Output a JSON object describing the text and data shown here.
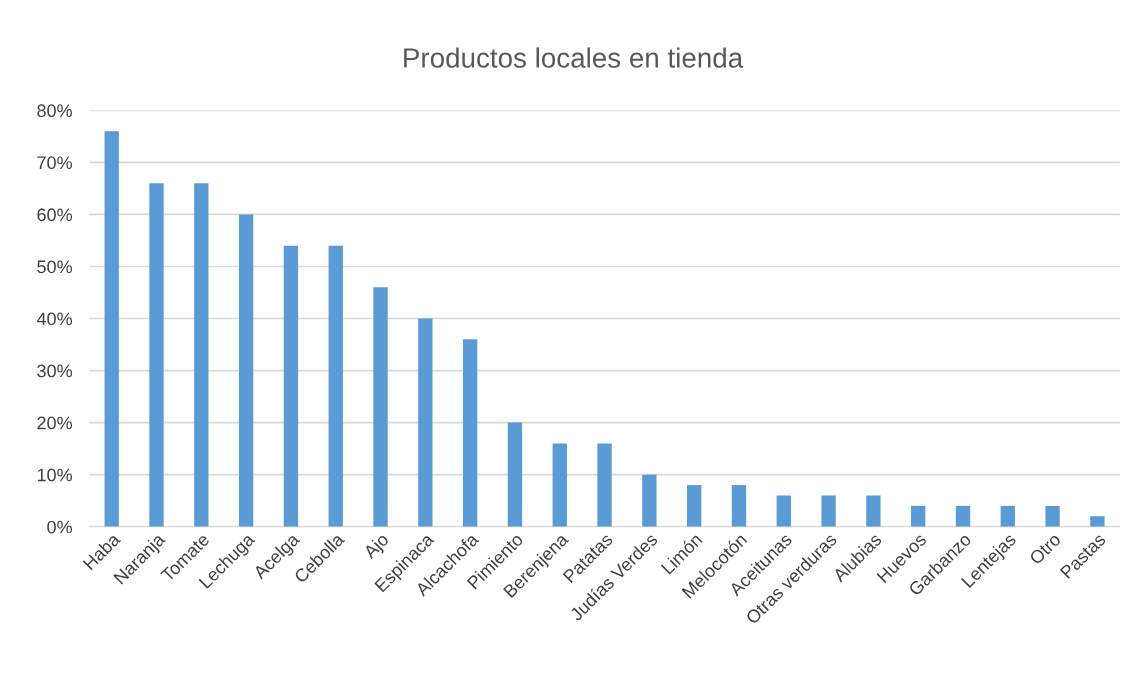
{
  "chart_data": {
    "type": "bar",
    "title": "Productos locales en tienda",
    "categories": [
      "Haba",
      "Naranja",
      "Tomate",
      "Lechuga",
      "Acelga",
      "Cebolla",
      "Ajo",
      "Espinaca",
      "Alcachofa",
      "Pimiento",
      "Berenjena",
      "Patatas",
      "Judías Verdes",
      "Limón",
      "Melocotón",
      "Aceitunas",
      "Otras verduras",
      "Alubias",
      "Huevos",
      "Garbanzo",
      "Lentejas",
      "Otro",
      "Pastas"
    ],
    "values": [
      76,
      66,
      66,
      60,
      54,
      54,
      46,
      40,
      36,
      20,
      16,
      16,
      10,
      8,
      8,
      6,
      6,
      6,
      4,
      4,
      4,
      4,
      2
    ],
    "color": "#5b9bd5",
    "ylim": [
      0,
      80
    ],
    "yticks": [
      {
        "value": 0,
        "label": "0%"
      },
      {
        "value": 10,
        "label": "10%"
      },
      {
        "value": 20,
        "label": "20%"
      },
      {
        "value": 30,
        "label": "30%"
      },
      {
        "value": 40,
        "label": "40%"
      },
      {
        "value": 50,
        "label": "50%"
      },
      {
        "value": 60,
        "label": "60%"
      },
      {
        "value": 70,
        "label": "70%"
      },
      {
        "value": 80,
        "label": "80%"
      }
    ],
    "grid": "y"
  }
}
